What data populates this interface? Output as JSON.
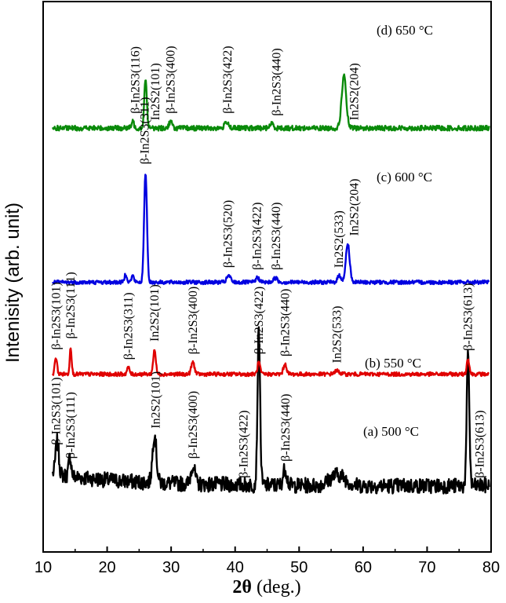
{
  "chart_data": {
    "type": "line",
    "xlabel_bold": "2θ",
    "xlabel_rest": " (deg.)",
    "ylabel": "Intenisity (arb. unit)",
    "xlim": [
      10,
      80
    ],
    "xticks": [
      10,
      20,
      30,
      40,
      50,
      60,
      70,
      80
    ],
    "grid": false,
    "series": [
      {
        "key": "a",
        "name": "(a) 500 °C",
        "color": "#000000",
        "baseline": 0.12,
        "noise": 0.028,
        "peaks": [
          {
            "x": 12.2,
            "h": 0.06,
            "w": 0.25
          },
          {
            "x": 14.2,
            "h": 0.035,
            "w": 0.2
          },
          {
            "x": 27.4,
            "h": 0.09,
            "w": 0.3
          },
          {
            "x": 33.4,
            "h": 0.035,
            "w": 0.3
          },
          {
            "x": 43.7,
            "h": 0.28,
            "w": 0.2
          },
          {
            "x": 47.8,
            "h": 0.03,
            "w": 0.3
          },
          {
            "x": 56.0,
            "h": 0.02,
            "w": 1.2
          },
          {
            "x": 76.4,
            "h": 0.24,
            "w": 0.2
          }
        ],
        "labels": [
          {
            "x": 12.0,
            "t": "β-In2S3(101)"
          },
          {
            "x": 14.3,
            "t": "β-In2S3(111)"
          },
          {
            "x": 27.6,
            "t": "In2S2(101)"
          },
          {
            "x": 33.4,
            "t": "β-In2S3(400)"
          },
          {
            "x": 41.3,
            "t": "β-In2S3(422)"
          },
          {
            "x": 47.9,
            "t": "β-In2S3(440)"
          },
          {
            "x": 78.2,
            "t": "β-In2S3(613)"
          }
        ]
      },
      {
        "key": "b",
        "name": "(b) 550 °C",
        "color": "#e00000",
        "baseline": 0.323,
        "noise": 0.007,
        "peaks": [
          {
            "x": 12.0,
            "h": 0.03,
            "w": 0.18
          },
          {
            "x": 14.3,
            "h": 0.05,
            "w": 0.15
          },
          {
            "x": 23.3,
            "h": 0.012,
            "w": 0.2
          },
          {
            "x": 27.4,
            "h": 0.045,
            "w": 0.2
          },
          {
            "x": 33.4,
            "h": 0.022,
            "w": 0.25
          },
          {
            "x": 43.7,
            "h": 0.022,
            "w": 0.2
          },
          {
            "x": 47.8,
            "h": 0.018,
            "w": 0.25
          },
          {
            "x": 55.9,
            "h": 0.006,
            "w": 0.4
          },
          {
            "x": 76.4,
            "h": 0.028,
            "w": 0.2
          }
        ],
        "labels": [
          {
            "x": 12.0,
            "t": "β-In2S3(101)"
          },
          {
            "x": 14.3,
            "t": "β-In2S3(111)"
          },
          {
            "x": 23.3,
            "t": "β-In2S3(311)"
          },
          {
            "x": 27.4,
            "t": "In2S2(101)"
          },
          {
            "x": 33.4,
            "t": "β-In2S3(400)"
          },
          {
            "x": 43.7,
            "t": "β-In2S3(422)"
          },
          {
            "x": 47.8,
            "t": "β-In2S3(440)"
          },
          {
            "x": 55.9,
            "t": "In2S2(533)"
          },
          {
            "x": 76.4,
            "t": "β-In2S3(613)"
          }
        ]
      },
      {
        "key": "c",
        "name": "(c) 600 °C",
        "color": "#0000e0",
        "baseline": 0.49,
        "noise": 0.007,
        "peaks": [
          {
            "x": 22.9,
            "h": 0.015,
            "w": 0.2
          },
          {
            "x": 24.0,
            "h": 0.012,
            "w": 0.2
          },
          {
            "x": 26.0,
            "h": 0.2,
            "w": 0.22
          },
          {
            "x": 39.0,
            "h": 0.012,
            "w": 0.3
          },
          {
            "x": 43.5,
            "h": 0.008,
            "w": 0.3
          },
          {
            "x": 46.3,
            "h": 0.008,
            "w": 0.3
          },
          {
            "x": 56.3,
            "h": 0.012,
            "w": 0.3
          },
          {
            "x": 57.6,
            "h": 0.07,
            "w": 0.3
          }
        ],
        "labels": [
          {
            "x": 25.9,
            "t": "β-In2S3(311)"
          },
          {
            "x": 38.9,
            "t": "β-In2S3(520)"
          },
          {
            "x": 43.4,
            "t": "β-In2S3(422)"
          },
          {
            "x": 46.4,
            "t": "β-In2S3(440)"
          },
          {
            "x": 56.2,
            "t": "In2S2(533)"
          },
          {
            "x": 58.6,
            "t": "In2S2(204)"
          }
        ]
      },
      {
        "key": "d",
        "name": "(d) 650 °C",
        "color": "#0a8a0a",
        "baseline": 0.77,
        "noise": 0.009,
        "peaks": [
          {
            "x": 24.0,
            "h": 0.012,
            "w": 0.2
          },
          {
            "x": 26.0,
            "h": 0.09,
            "w": 0.2
          },
          {
            "x": 29.9,
            "h": 0.012,
            "w": 0.25
          },
          {
            "x": 38.7,
            "h": 0.012,
            "w": 0.3
          },
          {
            "x": 45.7,
            "h": 0.008,
            "w": 0.3
          },
          {
            "x": 57.0,
            "h": 0.095,
            "w": 0.35
          }
        ],
        "labels": [
          {
            "x": 24.4,
            "t": "β-In2S3(116)"
          },
          {
            "x": 27.5,
            "t": "In2S2(101)"
          },
          {
            "x": 29.9,
            "t": "β-In2S3(400)"
          },
          {
            "x": 38.8,
            "t": "β-In2S3(422)"
          },
          {
            "x": 46.5,
            "t": "β-In2S3(440)"
          },
          {
            "x": 58.6,
            "t": "In2S2(204)"
          }
        ]
      }
    ]
  }
}
